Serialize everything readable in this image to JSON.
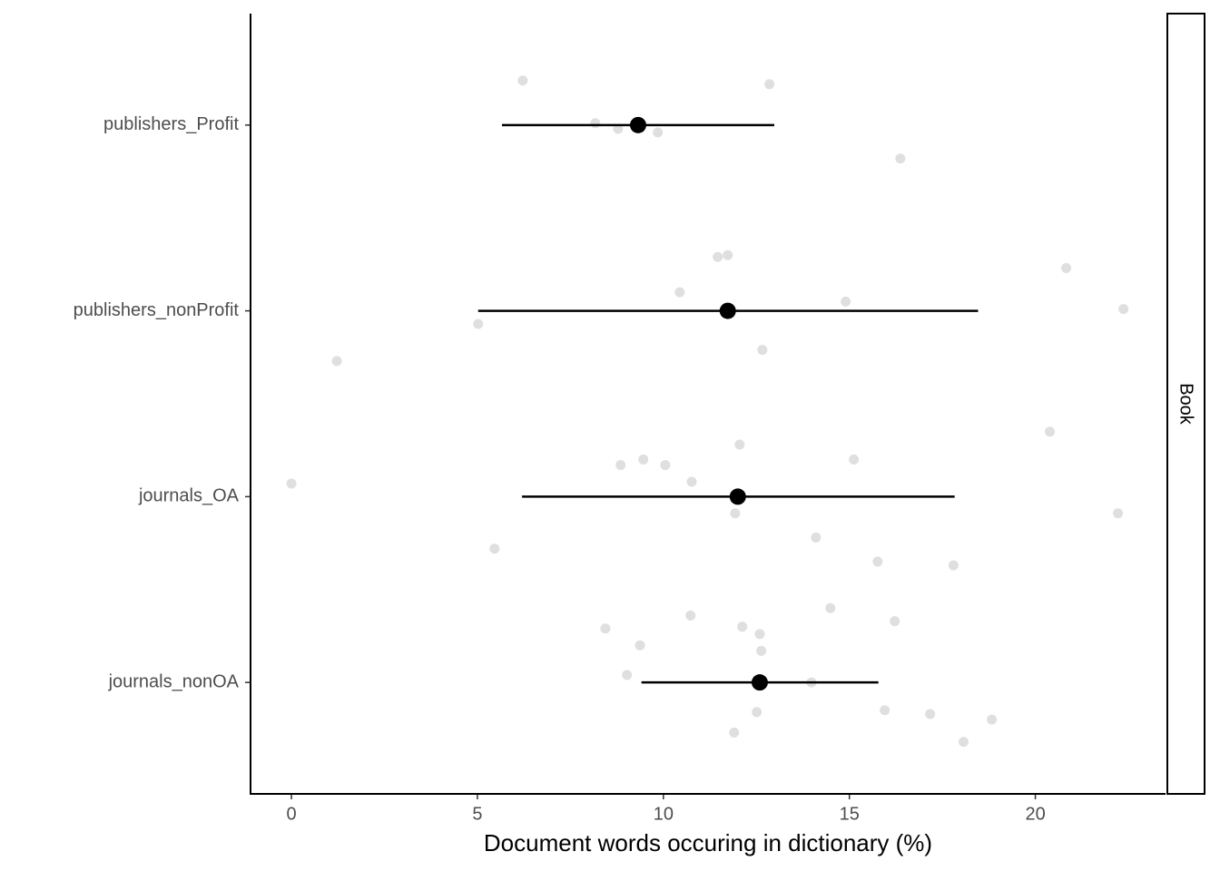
{
  "chart_data": {
    "type": "pointrange",
    "x_label": "Document words occuring in dictionary (%)",
    "facet_label": "Book",
    "categories": [
      "journals_nonOA",
      "journals_OA",
      "publishers_nonProfit",
      "publishers_Profit"
    ],
    "xlim": [
      -1.1,
      23.5
    ],
    "xticks": [
      0,
      5,
      10,
      15,
      20
    ],
    "ylim": [
      0.4,
      4.6
    ],
    "points": {
      "color": "#d9d9d9",
      "x": [
        6.22,
        12.85,
        8.17,
        8.78,
        9.85,
        16.37,
        11.73,
        11.46,
        20.83,
        10.44,
        14.9,
        22.37,
        5.02,
        12.66,
        1.22,
        20.39,
        12.05,
        9.46,
        8.85,
        10.05,
        15.12,
        0,
        10.76,
        11.93,
        22.22,
        5.46,
        14.1,
        15.76,
        17.8,
        14.49,
        10.73,
        16.22,
        8.44,
        12.12,
        12.59,
        9.37,
        12.63,
        9.02,
        13.98,
        15.95,
        12.51,
        17.17,
        18.83,
        11.9,
        18.07
      ],
      "y": [
        4.24,
        4.22,
        4.01,
        3.98,
        3.96,
        3.82,
        3.3,
        3.29,
        3.23,
        3.1,
        3.05,
        3.01,
        2.93,
        2.79,
        2.73,
        2.35,
        2.28,
        2.2,
        2.17,
        2.17,
        2.2,
        2.07,
        2.08,
        1.91,
        1.91,
        1.72,
        1.78,
        1.65,
        1.63,
        1.4,
        1.36,
        1.33,
        1.29,
        1.3,
        1.26,
        1.2,
        1.17,
        1.04,
        1.0,
        0.85,
        0.84,
        0.83,
        0.8,
        0.73,
        0.68
      ]
    },
    "summary": {
      "color": "#000000",
      "mean": [
        12.59,
        12.0,
        11.73,
        9.32
      ],
      "low": [
        9.41,
        6.2,
        5.02,
        5.66
      ],
      "high": [
        15.78,
        17.83,
        18.46,
        12.98
      ]
    }
  }
}
